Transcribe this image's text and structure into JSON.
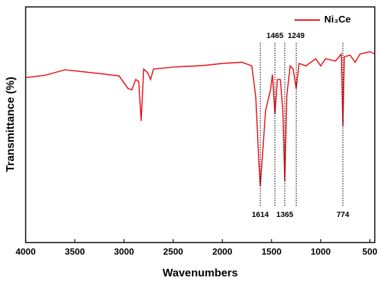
{
  "chart_data": {
    "type": "line",
    "x_label": "Wavenumbers",
    "y_label": "Transmittance (%)",
    "xlim": [
      4000,
      450
    ],
    "ylim": [
      0,
      100
    ],
    "x_reversed": true,
    "xticks": [
      4000,
      3500,
      3000,
      2500,
      2000,
      1500,
      1000,
      500
    ],
    "legend": "upper right",
    "series": [
      {
        "name": "Ni₃Ce",
        "color": "#e8141c",
        "x": [
          4000,
          3800,
          3600,
          3400,
          3200,
          3050,
          2960,
          2920,
          2880,
          2850,
          2825,
          2800,
          2760,
          2730,
          2700,
          2500,
          2200,
          2000,
          1800,
          1700,
          1660,
          1630,
          1614,
          1590,
          1560,
          1510,
          1490,
          1465,
          1440,
          1410,
          1385,
          1365,
          1345,
          1310,
          1280,
          1249,
          1220,
          1150,
          1050,
          1000,
          950,
          850,
          790,
          774,
          760,
          700,
          650,
          600,
          500,
          450
        ],
        "values": [
          70,
          71,
          73.3,
          72.4,
          71.5,
          70.7,
          65.4,
          64.8,
          69.2,
          68.3,
          51.6,
          73.6,
          72.1,
          69.2,
          73.6,
          74.5,
          75.1,
          76,
          76.5,
          75,
          61.9,
          35.5,
          23.8,
          38.4,
          56,
          64.8,
          71.3,
          54.5,
          69.2,
          69.2,
          56,
          26.1,
          61.9,
          75,
          73.6,
          65.4,
          76,
          75,
          78,
          75,
          78,
          77,
          80,
          49.3,
          78.9,
          79.5,
          76.5,
          80,
          81,
          80
        ]
      }
    ],
    "peaks": [
      {
        "x": 1614,
        "position": "bottom"
      },
      {
        "x": 1465,
        "position": "top"
      },
      {
        "x": 1365,
        "position": "bottom"
      },
      {
        "x": 1249,
        "position": "top"
      },
      {
        "x": 774,
        "position": "bottom"
      }
    ]
  }
}
